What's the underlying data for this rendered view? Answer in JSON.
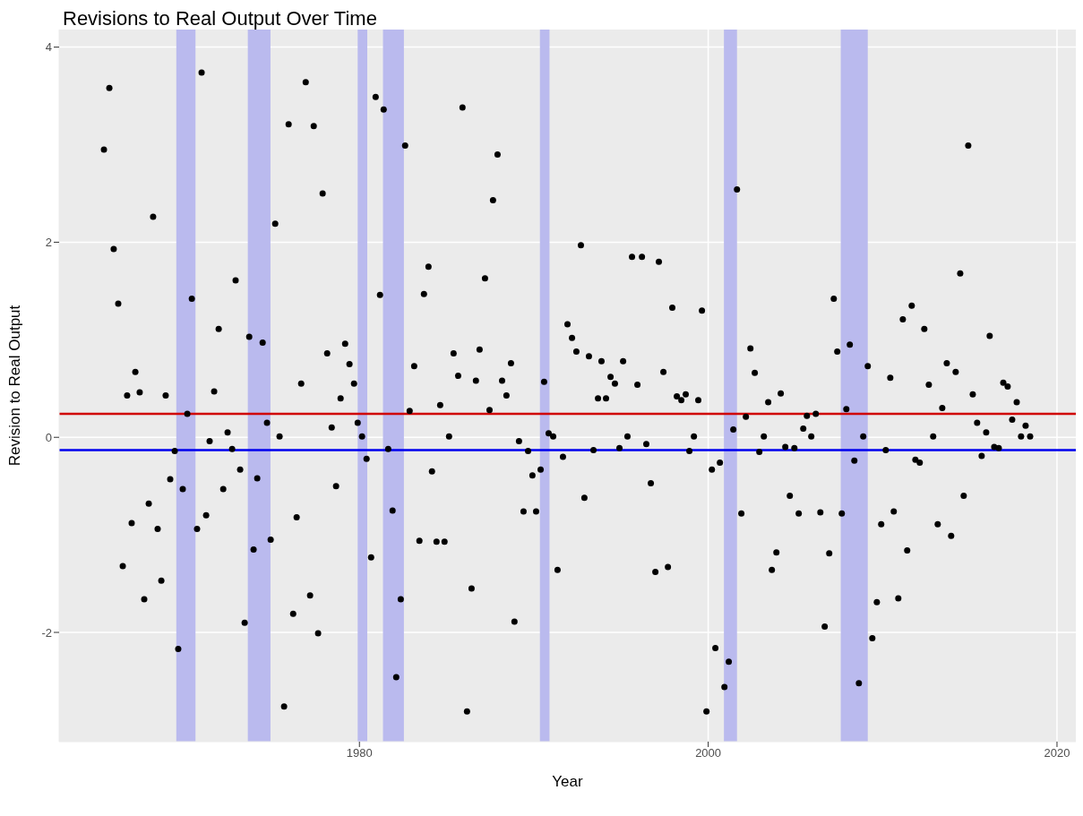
{
  "chart_data": {
    "type": "scatter",
    "title": "Revisions to Real Output Over Time",
    "xlabel": "Year",
    "ylabel": "Revision to Real Output",
    "xlim": [
      1962.78,
      2021.08
    ],
    "ylim": [
      -3.12,
      4.18
    ],
    "xticks": [
      1980,
      2000,
      2020
    ],
    "yticks": [
      -2,
      0,
      2,
      4
    ],
    "grid": true,
    "marker": "circle",
    "x": [
      1965.35,
      1965.66,
      1965.91,
      1966.17,
      1966.43,
      1966.68,
      1966.94,
      1967.15,
      1967.4,
      1967.66,
      1967.92,
      1968.17,
      1968.43,
      1968.64,
      1968.89,
      1969.15,
      1969.41,
      1969.61,
      1969.87,
      1970.13,
      1970.39,
      1970.69,
      1970.95,
      1971.21,
      1971.41,
      1971.67,
      1971.93,
      1972.19,
      1972.44,
      1972.7,
      1972.9,
      1973.16,
      1973.42,
      1973.68,
      1973.93,
      1974.14,
      1974.45,
      1974.7,
      1974.91,
      1975.17,
      1975.42,
      1975.68,
      1975.94,
      1976.2,
      1976.4,
      1976.66,
      1976.92,
      1977.17,
      1977.38,
      1977.63,
      1977.89,
      1978.15,
      1978.41,
      1978.66,
      1978.92,
      1979.18,
      1979.43,
      1979.69,
      1979.9,
      1980.15,
      1980.41,
      1980.67,
      1980.93,
      1981.18,
      1981.39,
      1981.65,
      1981.9,
      1982.11,
      1982.37,
      1982.62,
      1982.88,
      1983.14,
      1983.44,
      1983.7,
      1983.96,
      1984.16,
      1984.42,
      1984.63,
      1984.88,
      1985.14,
      1985.4,
      1985.66,
      1985.91,
      1986.17,
      1986.43,
      1986.68,
      1986.89,
      1987.2,
      1987.46,
      1987.66,
      1987.92,
      1988.18,
      1988.43,
      1988.69,
      1988.89,
      1989.15,
      1989.41,
      1989.67,
      1989.92,
      1990.13,
      1990.39,
      1990.59,
      1990.85,
      1991.11,
      1991.36,
      1991.67,
      1991.93,
      1992.19,
      1992.44,
      1992.7,
      1992.9,
      1993.16,
      1993.42,
      1993.68,
      1993.88,
      1994.14,
      1994.4,
      1994.65,
      1994.91,
      1995.12,
      1995.37,
      1995.63,
      1995.94,
      1996.2,
      1996.45,
      1996.71,
      1996.97,
      1997.17,
      1997.43,
      1997.69,
      1997.94,
      1998.2,
      1998.46,
      1998.71,
      1998.92,
      1999.18,
      1999.43,
      1999.64,
      1999.9,
      2000.21,
      2000.41,
      2000.67,
      2000.93,
      2001.18,
      2001.44,
      2001.65,
      2001.9,
      2002.16,
      2002.42,
      2002.67,
      2002.93,
      2003.19,
      2003.44,
      2003.65,
      2003.91,
      2004.16,
      2004.42,
      2004.68,
      2004.94,
      2005.19,
      2005.45,
      2005.66,
      2005.91,
      2006.17,
      2006.43,
      2006.68,
      2006.94,
      2007.2,
      2007.4,
      2007.66,
      2007.92,
      2008.12,
      2008.38,
      2008.64,
      2008.89,
      2009.15,
      2009.41,
      2009.67,
      2009.92,
      2010.18,
      2010.44,
      2010.64,
      2010.9,
      2011.16,
      2011.41,
      2011.67,
      2011.88,
      2012.13,
      2012.39,
      2012.65,
      2012.9,
      2013.16,
      2013.42,
      2013.68,
      2013.93,
      2014.19,
      2014.45,
      2014.65,
      2014.91,
      2015.17,
      2015.42,
      2015.68,
      2015.94,
      2016.14,
      2016.4,
      2016.66,
      2016.92,
      2017.17,
      2017.43,
      2017.69,
      2017.94,
      2018.2,
      2018.46
    ],
    "series": [
      {
        "color": "#000000",
        "values": [
          2.95,
          3.58,
          1.93,
          1.37,
          -1.32,
          0.43,
          -0.88,
          0.67,
          0.46,
          -1.66,
          -0.68,
          2.26,
          -0.94,
          -1.47,
          0.43,
          -0.43,
          -0.14,
          -2.17,
          -0.53,
          0.24,
          1.42,
          -0.94,
          3.74,
          -0.8,
          -0.04,
          0.47,
          1.11,
          -0.53,
          0.05,
          -0.12,
          1.61,
          -0.33,
          -1.9,
          1.03,
          -1.15,
          -0.42,
          0.97,
          0.15,
          -1.05,
          2.19,
          0.01,
          -2.76,
          3.21,
          -1.81,
          -0.82,
          0.55,
          3.64,
          -1.62,
          3.19,
          -2.01,
          2.5,
          0.86,
          0.1,
          -0.5,
          0.4,
          0.96,
          0.75,
          0.55,
          0.15,
          0.01,
          -0.22,
          -1.23,
          3.49,
          1.46,
          3.36,
          -0.12,
          -0.75,
          -2.46,
          -1.66,
          2.99,
          0.27,
          0.73,
          -1.06,
          1.47,
          1.75,
          -0.35,
          -1.07,
          0.33,
          -1.07,
          0.01,
          0.86,
          0.63,
          3.38,
          -2.81,
          -1.55,
          0.58,
          0.9,
          1.63,
          0.28,
          2.43,
          2.9,
          0.58,
          0.43,
          0.76,
          -1.89,
          -0.04,
          -0.76,
          -0.14,
          -0.39,
          -0.76,
          -0.33,
          0.57,
          0.04,
          0.01,
          -1.36,
          -0.2,
          1.16,
          1.02,
          0.88,
          1.97,
          -0.62,
          0.83,
          -0.13,
          0.4,
          0.78,
          0.4,
          0.62,
          0.55,
          -0.11,
          0.78,
          0.01,
          1.85,
          0.54,
          1.85,
          -0.07,
          -0.47,
          -1.38,
          1.8,
          0.67,
          -1.33,
          1.33,
          0.42,
          0.38,
          0.44,
          -0.14,
          0.01,
          0.38,
          1.3,
          -2.81,
          -0.33,
          -2.16,
          -0.26,
          -2.56,
          -2.3,
          0.08,
          2.54,
          -0.78,
          0.21,
          0.91,
          0.66,
          -0.15,
          0.01,
          0.36,
          -1.36,
          -1.18,
          0.45,
          -0.1,
          -0.6,
          -0.11,
          -0.78,
          0.09,
          0.22,
          0.01,
          0.24,
          -0.77,
          -1.94,
          -1.19,
          1.42,
          0.88,
          -0.78,
          0.29,
          0.95,
          -0.24,
          -2.52,
          0.01,
          0.73,
          -2.06,
          -1.69,
          -0.89,
          -0.13,
          0.61,
          -0.76,
          -1.65,
          1.21,
          -1.16,
          1.35,
          -0.23,
          -0.26,
          1.11,
          0.54,
          0.01,
          -0.89,
          0.3,
          0.76,
          -1.01,
          0.67,
          1.68,
          -0.6,
          2.99,
          0.44,
          0.15,
          -0.19,
          0.05,
          1.04,
          -0.1,
          -0.11,
          0.56,
          0.52,
          0.18,
          0.36,
          0.01,
          0.12,
          0.01
        ]
      }
    ],
    "ref_lines": [
      {
        "axis": "y",
        "value": 0.24,
        "color": "#d00000"
      },
      {
        "axis": "y",
        "value": -0.13,
        "color": "#0000ee"
      }
    ],
    "bands": [
      {
        "axis": "x",
        "from": 1969.5,
        "to": 1970.6,
        "color": "#babaee"
      },
      {
        "axis": "x",
        "from": 1973.6,
        "to": 1974.9,
        "color": "#babaee"
      },
      {
        "axis": "x",
        "from": 1979.9,
        "to": 1980.45,
        "color": "#babaee"
      },
      {
        "axis": "x",
        "from": 1981.35,
        "to": 1982.55,
        "color": "#babaee"
      },
      {
        "axis": "x",
        "from": 1990.35,
        "to": 1990.9,
        "color": "#babaee"
      },
      {
        "axis": "x",
        "from": 2000.9,
        "to": 2001.65,
        "color": "#babaee"
      },
      {
        "axis": "x",
        "from": 2007.6,
        "to": 2009.15,
        "color": "#babaee"
      }
    ]
  }
}
